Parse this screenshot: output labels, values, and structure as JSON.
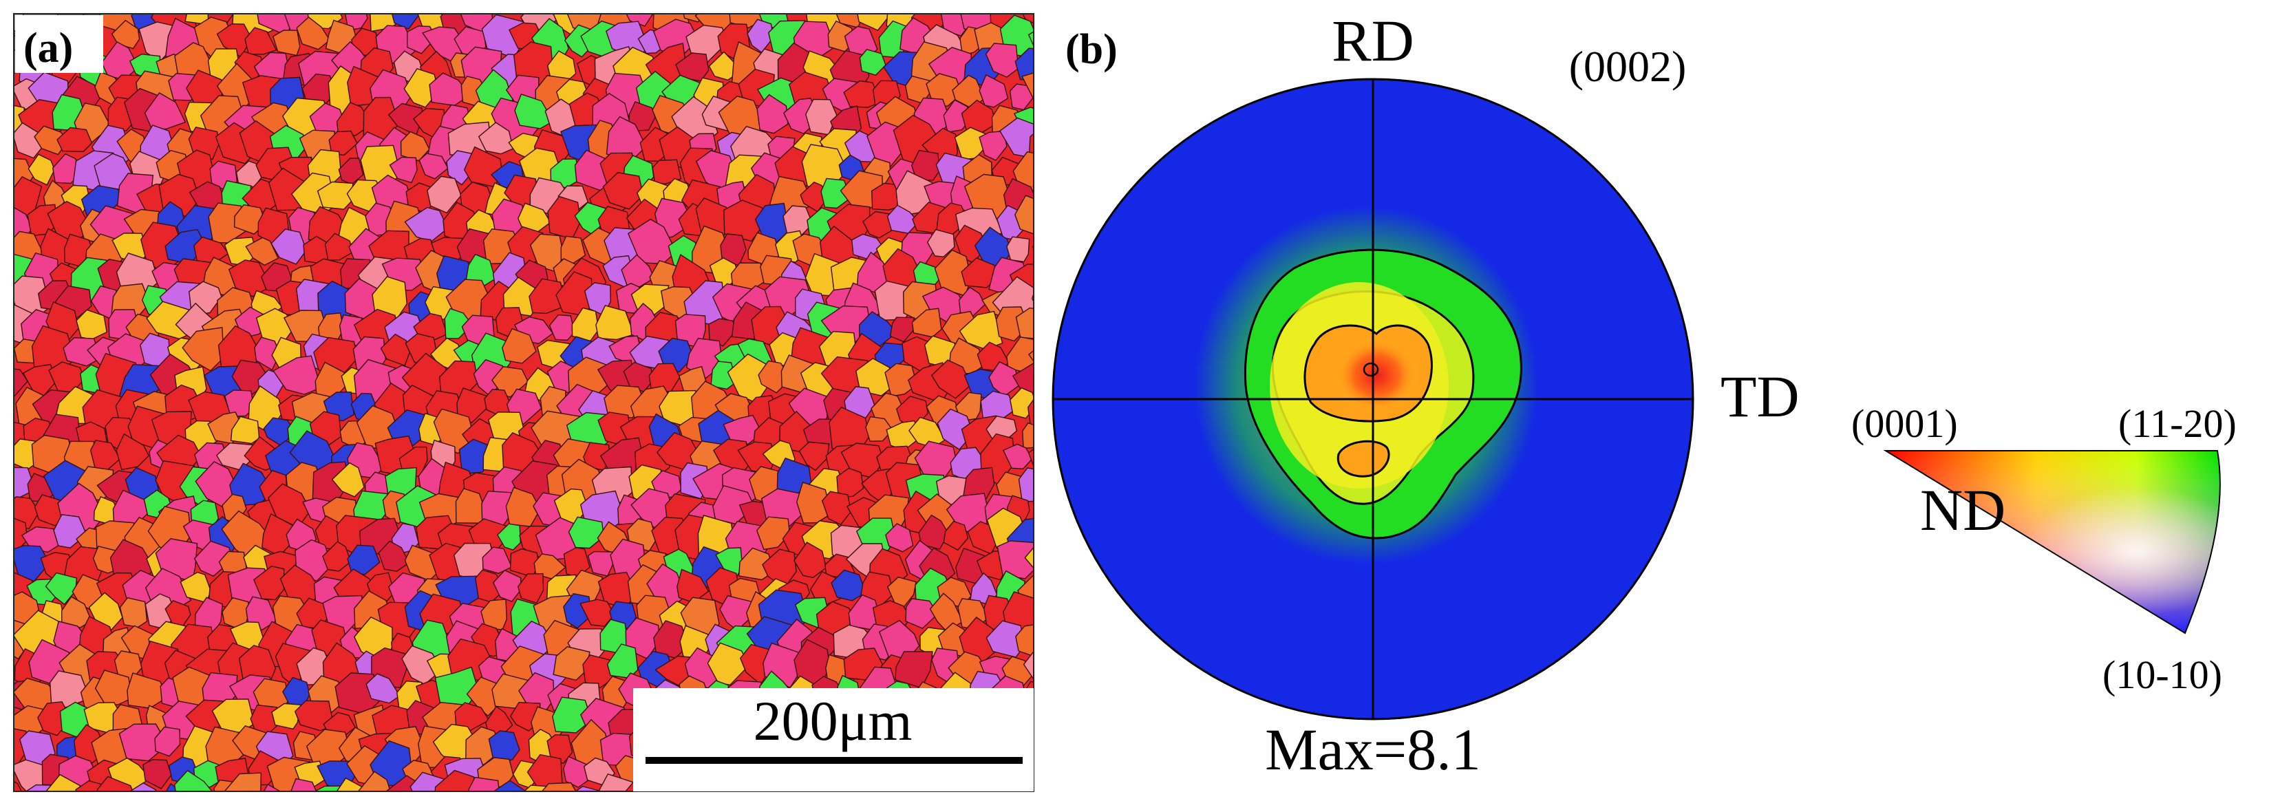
{
  "panel_a": {
    "label": "(a)",
    "scale_bar_text": "200μm"
  },
  "panel_b": {
    "label": "(b)",
    "plane": "(0002)",
    "rd": "RD",
    "td": "TD",
    "max_text": "Max=8.1"
  },
  "legend": {
    "corner_0001": "(0001)",
    "corner_11_20": "(11-20)",
    "corner_10_10": "(10-10)",
    "nd": "ND"
  },
  "colors": {
    "background_blue": "#1428e6",
    "green": "#22dd22",
    "yellow": "#f2f020",
    "orange": "#ff8a1a",
    "red": "#ee1c1c",
    "grain_red": "#e8262a",
    "grain_orange": "#f26a2a",
    "grain_magenta": "#ef3f8e",
    "grain_yellow": "#f7c224",
    "grain_green": "#3fe64a",
    "grain_blue": "#2d3fd8"
  }
}
